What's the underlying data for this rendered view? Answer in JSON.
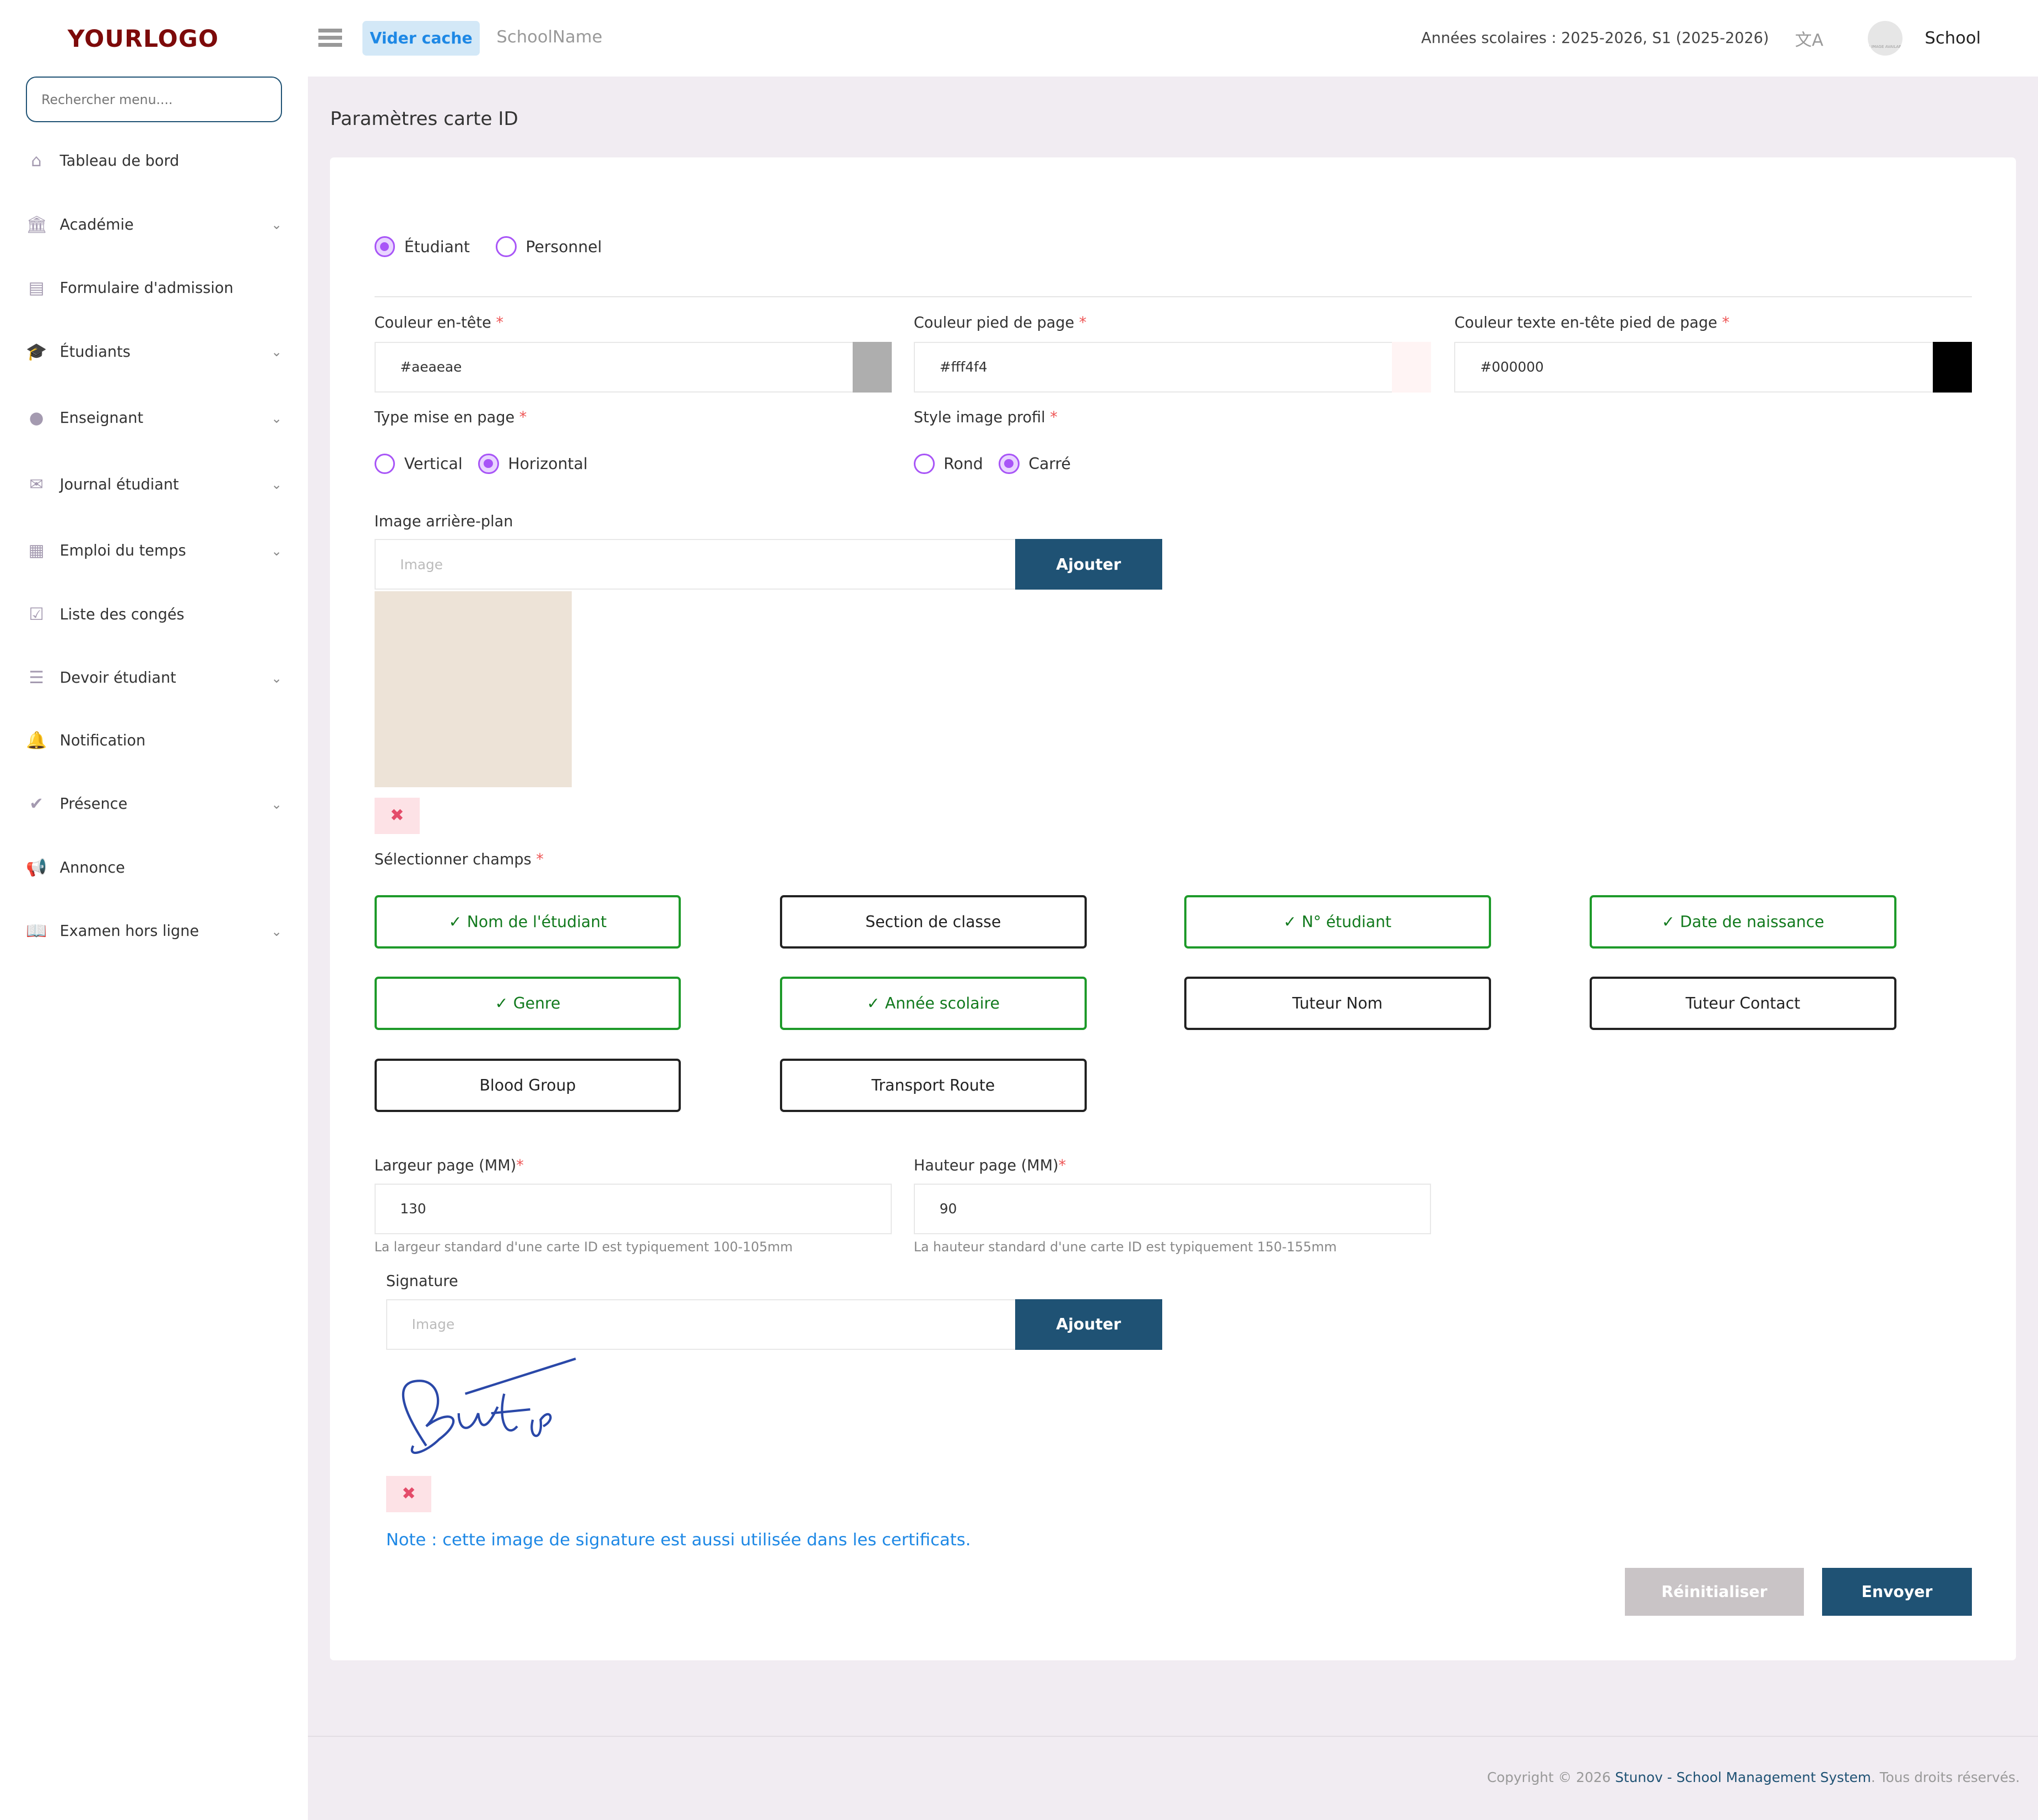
{
  "logo": "YOURLOGO",
  "sidebar": {
    "search_placeholder": "Rechercher menu....",
    "items": [
      {
        "label": "Tableau de bord",
        "icon": "home-icon",
        "expandable": false
      },
      {
        "label": "Académie",
        "icon": "institution-icon",
        "expandable": true
      },
      {
        "label": "Formulaire d'admission",
        "icon": "form-icon",
        "expandable": false
      },
      {
        "label": "Étudiants",
        "icon": "graduation-cap-icon",
        "expandable": true
      },
      {
        "label": "Enseignant",
        "icon": "user-icon",
        "expandable": true
      },
      {
        "label": "Journal étudiant",
        "icon": "envelope-icon",
        "expandable": true
      },
      {
        "label": "Emploi du temps",
        "icon": "calendar-icon",
        "expandable": true
      },
      {
        "label": "Liste des congés",
        "icon": "calendar-check-icon",
        "expandable": false
      },
      {
        "label": "Devoir étudiant",
        "icon": "tasks-icon",
        "expandable": true
      },
      {
        "label": "Notification",
        "icon": "bell-icon",
        "expandable": false
      },
      {
        "label": "Présence",
        "icon": "check-icon",
        "expandable": true
      },
      {
        "label": "Annonce",
        "icon": "megaphone-icon",
        "expandable": false
      },
      {
        "label": "Examen hors ligne",
        "icon": "book-icon",
        "expandable": true
      }
    ]
  },
  "header": {
    "clear_cache": "Vider cache",
    "school_name": "SchoolName",
    "academic_years": "Années scolaires : 2025-2026, S1 (2025-2026)",
    "user": "School",
    "avatar_text": "NO IMAGE AVAILABLE"
  },
  "page": {
    "title": "Paramètres carte ID"
  },
  "form": {
    "type_options": [
      {
        "label": "Étudiant",
        "selected": true
      },
      {
        "label": "Personnel",
        "selected": false
      }
    ],
    "header_color": {
      "label": "Couleur en-tête",
      "value": "#aeaeae"
    },
    "footer_color": {
      "label": "Couleur pied de page",
      "value": "#fff4f4"
    },
    "text_color": {
      "label": "Couleur texte en-tête pied de page",
      "value": "#000000"
    },
    "layout": {
      "label": "Type mise en page",
      "options": [
        {
          "label": "Vertical",
          "selected": false
        },
        {
          "label": "Horizontal",
          "selected": true
        }
      ]
    },
    "profile_style": {
      "label": "Style image profil",
      "options": [
        {
          "label": "Rond",
          "selected": false
        },
        {
          "label": "Carré",
          "selected": true
        }
      ]
    },
    "background": {
      "label": "Image arrière-plan",
      "placeholder": "Image",
      "button": "Ajouter"
    },
    "fields_label": "Sélectionner champs",
    "fields": [
      {
        "label": "Nom de l'étudiant",
        "selected": true
      },
      {
        "label": "Section de classe",
        "selected": false
      },
      {
        "label": "N° étudiant",
        "selected": true
      },
      {
        "label": "Date de naissance",
        "selected": true
      },
      {
        "label": "Genre",
        "selected": true
      },
      {
        "label": "Année scolaire",
        "selected": true
      },
      {
        "label": "Tuteur Nom",
        "selected": false
      },
      {
        "label": "Tuteur Contact",
        "selected": false
      },
      {
        "label": "Blood Group",
        "selected": false
      },
      {
        "label": "Transport Route",
        "selected": false
      }
    ],
    "check": "✓",
    "width": {
      "label": "Largeur page (MM)",
      "value": "130",
      "hint": "La largeur standard d'une carte ID est typiquement 100-105mm"
    },
    "height": {
      "label": "Hauteur page (MM)",
      "value": "90",
      "hint": "La hauteur standard d'une carte ID est typiquement 150-155mm"
    },
    "signature": {
      "label": "Signature",
      "placeholder": "Image",
      "button": "Ajouter",
      "note": "Note : cette image de signature est aussi utilisée dans les certificats."
    },
    "reset": "Réinitialiser",
    "submit": "Envoyer"
  },
  "footer": {
    "copyright": "Copyright © 2026",
    "brand": "Stunov - School Management System",
    "rights": ". Tous droits réservés."
  }
}
